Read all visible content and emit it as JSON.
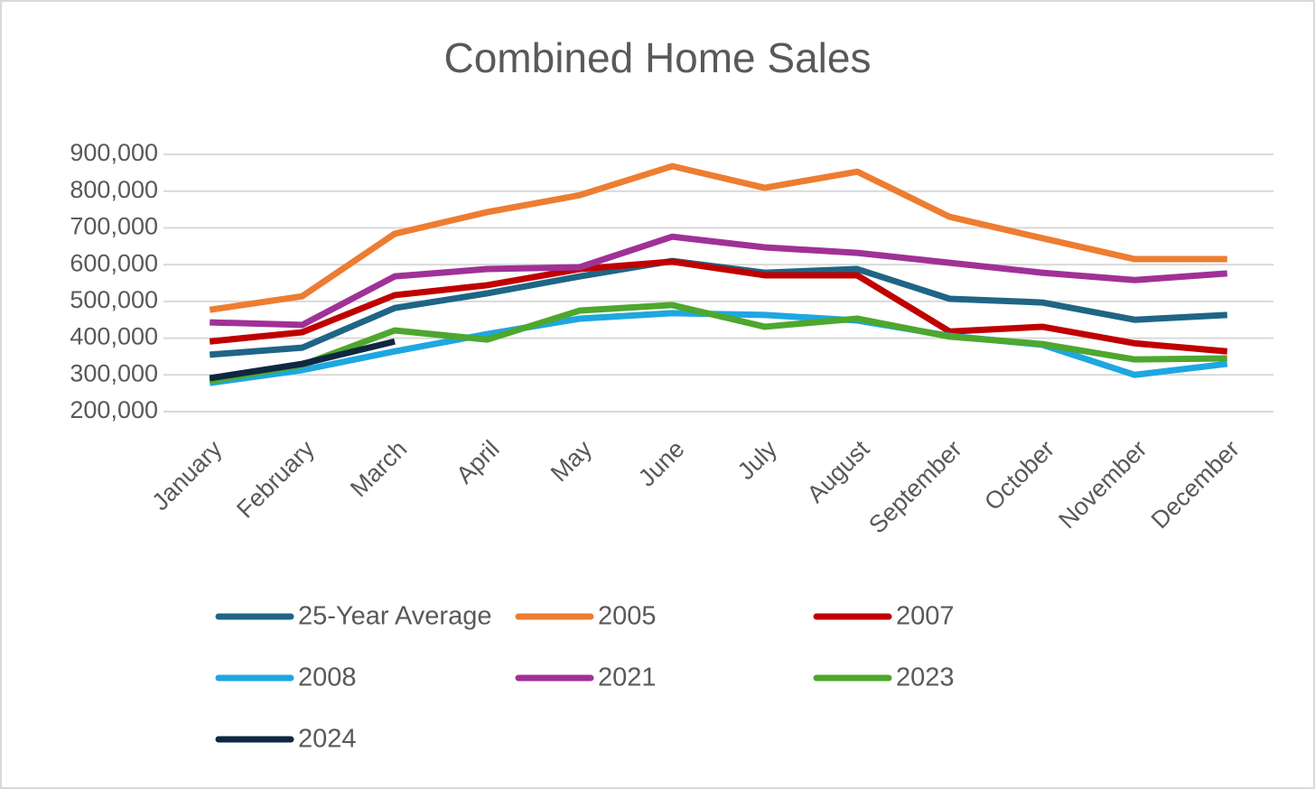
{
  "chart_data": {
    "type": "line",
    "title": "Combined Home Sales",
    "categories": [
      "January",
      "February",
      "March",
      "April",
      "May",
      "June",
      "July",
      "August",
      "September",
      "October",
      "November",
      "December"
    ],
    "series": [
      {
        "name": "25-Year Average",
        "color": "#1f6585",
        "values": [
          355000,
          374000,
          482000,
          522000,
          568000,
          610000,
          578000,
          588000,
          507000,
          497000,
          450000,
          463000
        ]
      },
      {
        "name": "2005",
        "color": "#ed7d31",
        "values": [
          477000,
          514000,
          684000,
          743000,
          789000,
          868000,
          809000,
          853000,
          730000,
          672000,
          615000,
          615000
        ]
      },
      {
        "name": "2007",
        "color": "#c00000",
        "values": [
          391000,
          416000,
          517000,
          544000,
          588000,
          608000,
          571000,
          571000,
          418000,
          431000,
          386000,
          364000
        ]
      },
      {
        "name": "2008",
        "color": "#1ea7e0",
        "values": [
          278000,
          313000,
          364000,
          411000,
          453000,
          468000,
          463000,
          448000,
          406000,
          382000,
          300000,
          330000
        ]
      },
      {
        "name": "2021",
        "color": "#a03196",
        "values": [
          443000,
          436000,
          568000,
          588000,
          593000,
          676000,
          647000,
          632000,
          605000,
          578000,
          558000,
          576000
        ]
      },
      {
        "name": "2023",
        "color": "#4ea72e",
        "values": [
          283000,
          327000,
          421000,
          396000,
          475000,
          490000,
          431000,
          453000,
          404000,
          384000,
          342000,
          345000
        ]
      },
      {
        "name": "2024",
        "color": "#0e2841",
        "values": [
          291000,
          330000,
          391000,
          null,
          null,
          null,
          null,
          null,
          null,
          null,
          null,
          null
        ]
      }
    ],
    "ylim": [
      200000,
      900000
    ],
    "yticks": [
      {
        "value": 200000,
        "label": "200,000"
      },
      {
        "value": 300000,
        "label": "300,000"
      },
      {
        "value": 400000,
        "label": "400,000"
      },
      {
        "value": 500000,
        "label": "500,000"
      },
      {
        "value": 600000,
        "label": "600,000"
      },
      {
        "value": 700000,
        "label": "700,000"
      },
      {
        "value": 800000,
        "label": "800,000"
      },
      {
        "value": 900000,
        "label": "900,000"
      }
    ],
    "grid": true
  }
}
